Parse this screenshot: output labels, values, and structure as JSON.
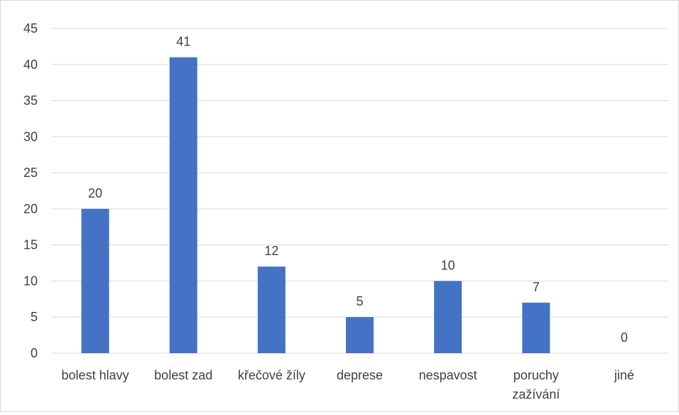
{
  "chart_data": {
    "type": "bar",
    "categories": [
      [
        "bolest hlavy"
      ],
      [
        "bolest zad"
      ],
      [
        "křečové žíly"
      ],
      [
        "deprese"
      ],
      [
        "nespavost"
      ],
      [
        "poruchy",
        "zažívání"
      ],
      [
        "jiné"
      ]
    ],
    "values": [
      20,
      41,
      12,
      5,
      10,
      7,
      0
    ],
    "ylim": [
      0,
      45
    ],
    "yticks": [
      0,
      5,
      10,
      15,
      20,
      25,
      30,
      35,
      40,
      45
    ],
    "grid": true,
    "data_labels": true,
    "bar_color": "#4472c4",
    "grid_color": "#d9d9d9"
  }
}
